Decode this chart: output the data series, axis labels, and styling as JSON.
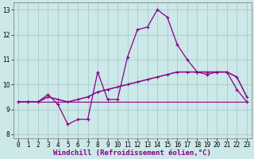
{
  "title": "",
  "xlabel": "Windchill (Refroidissement éolien,°C)",
  "ylabel": "",
  "background_color": "#cce8e8",
  "line_color": "#880088",
  "grid_color": "#aacccc",
  "xlim": [
    -0.5,
    23.5
  ],
  "ylim": [
    7.85,
    13.3
  ],
  "yticks": [
    8,
    9,
    10,
    11,
    12,
    13
  ],
  "xticks": [
    0,
    1,
    2,
    3,
    4,
    5,
    6,
    7,
    8,
    9,
    10,
    11,
    12,
    13,
    14,
    15,
    16,
    17,
    18,
    19,
    20,
    21,
    22,
    23
  ],
  "hours": [
    0,
    1,
    2,
    3,
    4,
    5,
    6,
    7,
    8,
    9,
    10,
    11,
    12,
    13,
    14,
    15,
    16,
    17,
    18,
    19,
    20,
    21,
    22,
    23
  ],
  "line1": [
    9.3,
    9.3,
    9.3,
    9.6,
    9.2,
    8.4,
    8.6,
    8.6,
    10.5,
    9.4,
    9.4,
    11.1,
    12.2,
    12.3,
    13.0,
    12.7,
    11.6,
    11.0,
    10.5,
    10.4,
    10.5,
    10.5,
    9.8,
    9.3
  ],
  "line2": [
    9.3,
    9.3,
    9.3,
    9.5,
    9.4,
    9.3,
    9.4,
    9.5,
    9.7,
    9.8,
    9.9,
    10.0,
    10.1,
    10.2,
    10.3,
    10.4,
    10.5,
    10.5,
    10.5,
    10.5,
    10.5,
    10.5,
    10.3,
    9.5
  ],
  "line3": [
    9.3,
    9.3,
    9.3,
    9.3,
    9.3,
    9.3,
    9.3,
    9.3,
    9.3,
    9.3,
    9.3,
    9.3,
    9.3,
    9.3,
    9.3,
    9.3,
    9.3,
    9.3,
    9.3,
    9.3,
    9.3,
    9.3,
    9.3,
    9.3
  ],
  "tick_fontsize": 5.5,
  "xlabel_fontsize": 6.5
}
